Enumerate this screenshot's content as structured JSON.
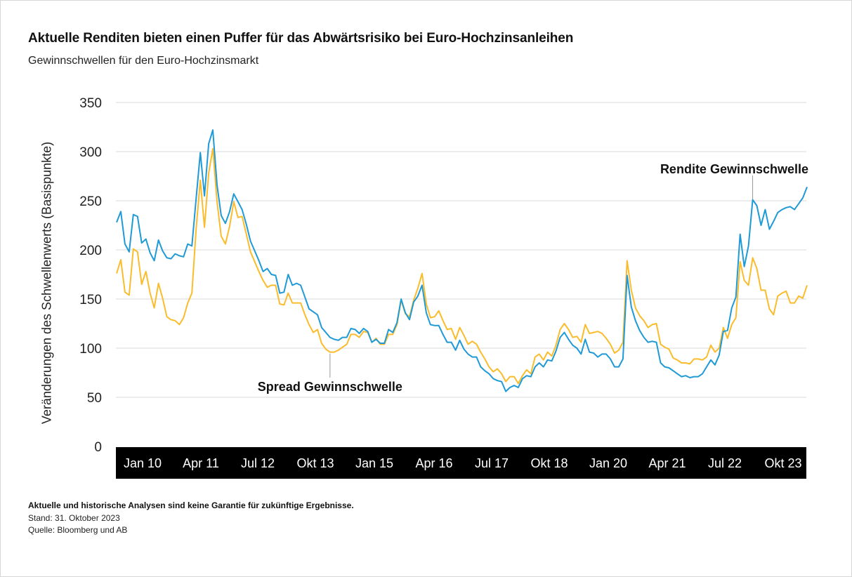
{
  "title": "Aktuelle Renditen bieten einen Puffer für das Abwärtsrisiko bei Euro-Hochzinsanleihen",
  "subtitle": "Gewinnschwellen für den Euro-Hochzinsmarkt",
  "footnotes": {
    "disclaimer": "Aktuelle und historische Analysen sind keine Garantie für zukünftige Ergebnisse.",
    "date": "Stand: 31. Oktober 2023",
    "source": "Quelle: Bloomberg und AB"
  },
  "chart_data": {
    "type": "line",
    "title": "Aktuelle Renditen bieten einen Puffer für das Abwärtsrisiko bei Euro-Hochzinsanleihen",
    "subtitle": "Gewinnschwellen für den Euro-Hochzinsmarkt",
    "xlabel": "",
    "ylabel": "Veränderungen des Schwellenwerts (Basispunkte)",
    "ylim": [
      0,
      350
    ],
    "yticks": [
      0,
      50,
      100,
      150,
      200,
      250,
      300,
      350
    ],
    "xlim": [
      "2010-01",
      "2023-10"
    ],
    "xtick_labels": [
      "Jan 10",
      "Apr 11",
      "Jul 12",
      "Okt 13",
      "Jan 15",
      "Apr 16",
      "Jul 17",
      "Okt 18",
      "Jan 20",
      "Apr 21",
      "Jul 22",
      "Okt 23"
    ],
    "grid": "horizontal",
    "series": [
      {
        "name": "Rendite Gewinnschwelle",
        "color": "#1f9ad6",
        "values": [
          228,
          239,
          206,
          198,
          236,
          234,
          207,
          211,
          197,
          189,
          210,
          199,
          192,
          191,
          196,
          194,
          193,
          206,
          204,
          252,
          299,
          255,
          308,
          322,
          266,
          235,
          227,
          239,
          257,
          249,
          241,
          226,
          209,
          199,
          189,
          178,
          181,
          175,
          174,
          156,
          157,
          175,
          164,
          166,
          164,
          152,
          140,
          137,
          134,
          121,
          116,
          111,
          109,
          108,
          111,
          111,
          120,
          119,
          115,
          120,
          117,
          106,
          109,
          105,
          105,
          119,
          116,
          126,
          150,
          136,
          129,
          147,
          153,
          164,
          136,
          124,
          123,
          123,
          114,
          106,
          106,
          98,
          108,
          99,
          94,
          91,
          91,
          81,
          77,
          74,
          69,
          67,
          66,
          56,
          60,
          62,
          60,
          69,
          72,
          71,
          81,
          85,
          81,
          88,
          87,
          97,
          111,
          116,
          109,
          103,
          100,
          94,
          109,
          96,
          95,
          91,
          94,
          94,
          89,
          81,
          81,
          89,
          174,
          142,
          128,
          118,
          111,
          106,
          107,
          106,
          85,
          81,
          80,
          77,
          74,
          71,
          72,
          70,
          71,
          71,
          74,
          81,
          88,
          83,
          93,
          117,
          118,
          141,
          152,
          216,
          183,
          204,
          251,
          245,
          225,
          241,
          221,
          229,
          238,
          241,
          243,
          244,
          241,
          247,
          253,
          264
        ]
      },
      {
        "name": "Spread Gewinnschwelle",
        "color": "#fbbc2c",
        "values": [
          176,
          190,
          157,
          154,
          201,
          198,
          165,
          178,
          156,
          141,
          166,
          151,
          132,
          129,
          128,
          124,
          131,
          146,
          156,
          221,
          271,
          223,
          278,
          303,
          249,
          214,
          206,
          224,
          249,
          233,
          234,
          216,
          198,
          188,
          178,
          169,
          162,
          164,
          164,
          145,
          144,
          156,
          146,
          146,
          146,
          134,
          124,
          116,
          119,
          105,
          99,
          96,
          96,
          98,
          101,
          104,
          114,
          114,
          111,
          117,
          116,
          106,
          110,
          104,
          104,
          114,
          114,
          124,
          149,
          135,
          132,
          149,
          161,
          176,
          145,
          131,
          132,
          138,
          128,
          119,
          120,
          109,
          121,
          113,
          104,
          107,
          104,
          96,
          89,
          81,
          76,
          79,
          74,
          66,
          71,
          71,
          64,
          72,
          78,
          74,
          91,
          94,
          88,
          96,
          92,
          103,
          119,
          125,
          119,
          111,
          112,
          106,
          124,
          115,
          116,
          117,
          115,
          110,
          104,
          95,
          98,
          106,
          189,
          159,
          141,
          133,
          128,
          121,
          124,
          125,
          104,
          101,
          99,
          90,
          88,
          85,
          85,
          84,
          89,
          89,
          88,
          91,
          103,
          96,
          100,
          121,
          110,
          124,
          131,
          188,
          169,
          164,
          192,
          181,
          159,
          159,
          140,
          134,
          153,
          156,
          158,
          146,
          146,
          153,
          151,
          164
        ]
      }
    ],
    "annotations": [
      {
        "text": "Rendite Gewinnschwelle",
        "date": "2022-09"
      },
      {
        "text": "Spread Gewinnschwelle",
        "date": "2014-04"
      }
    ]
  }
}
